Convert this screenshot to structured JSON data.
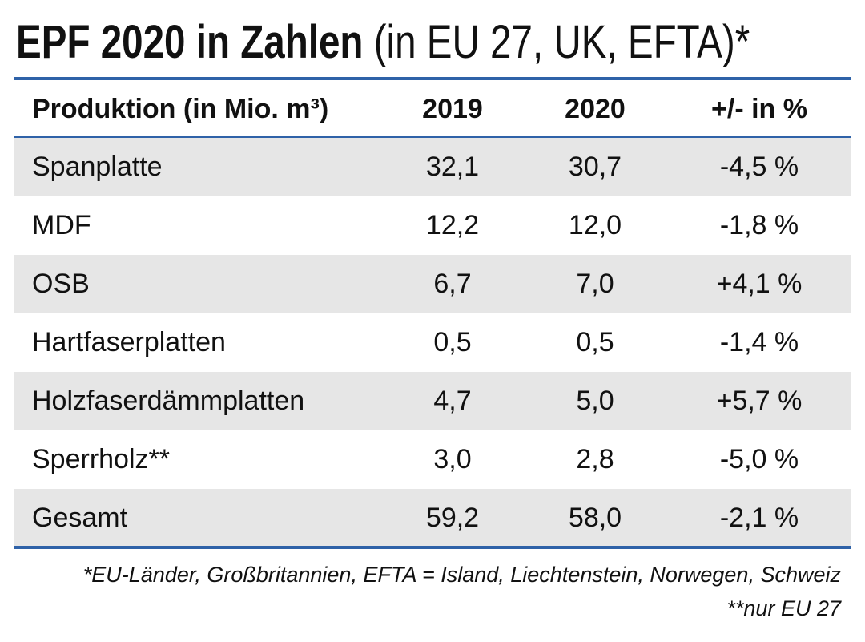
{
  "header": {
    "title_bold": "EPF 2020 in Zahlen",
    "title_rest": "(in EU 27, UK, EFTA)*"
  },
  "table": {
    "columns": [
      "Produktion (in Mio. m³)",
      "2019",
      "2020",
      "+/- in %"
    ],
    "rows": [
      [
        "Spanplatte",
        "32,1",
        "30,7",
        "-4,5 %"
      ],
      [
        "MDF",
        "12,2",
        "12,0",
        "-1,8 %"
      ],
      [
        "OSB",
        "6,7",
        "7,0",
        "+4,1 %"
      ],
      [
        "Hartfaserplatten",
        "0,5",
        "0,5",
        "-1,4 %"
      ],
      [
        "Holzfaserdämmplatten",
        "4,7",
        "5,0",
        "+5,7 %"
      ],
      [
        "Sperrholz**",
        "3,0",
        "2,8",
        "-5,0 %"
      ],
      [
        "Gesamt",
        "59,2",
        "58,0",
        "-2,1 %"
      ]
    ]
  },
  "footnotes": [
    "*EU-Länder, Großbritannien, EFTA = Island, Liechtenstein, Norwegen, Schweiz",
    "**nur EU 27"
  ]
}
